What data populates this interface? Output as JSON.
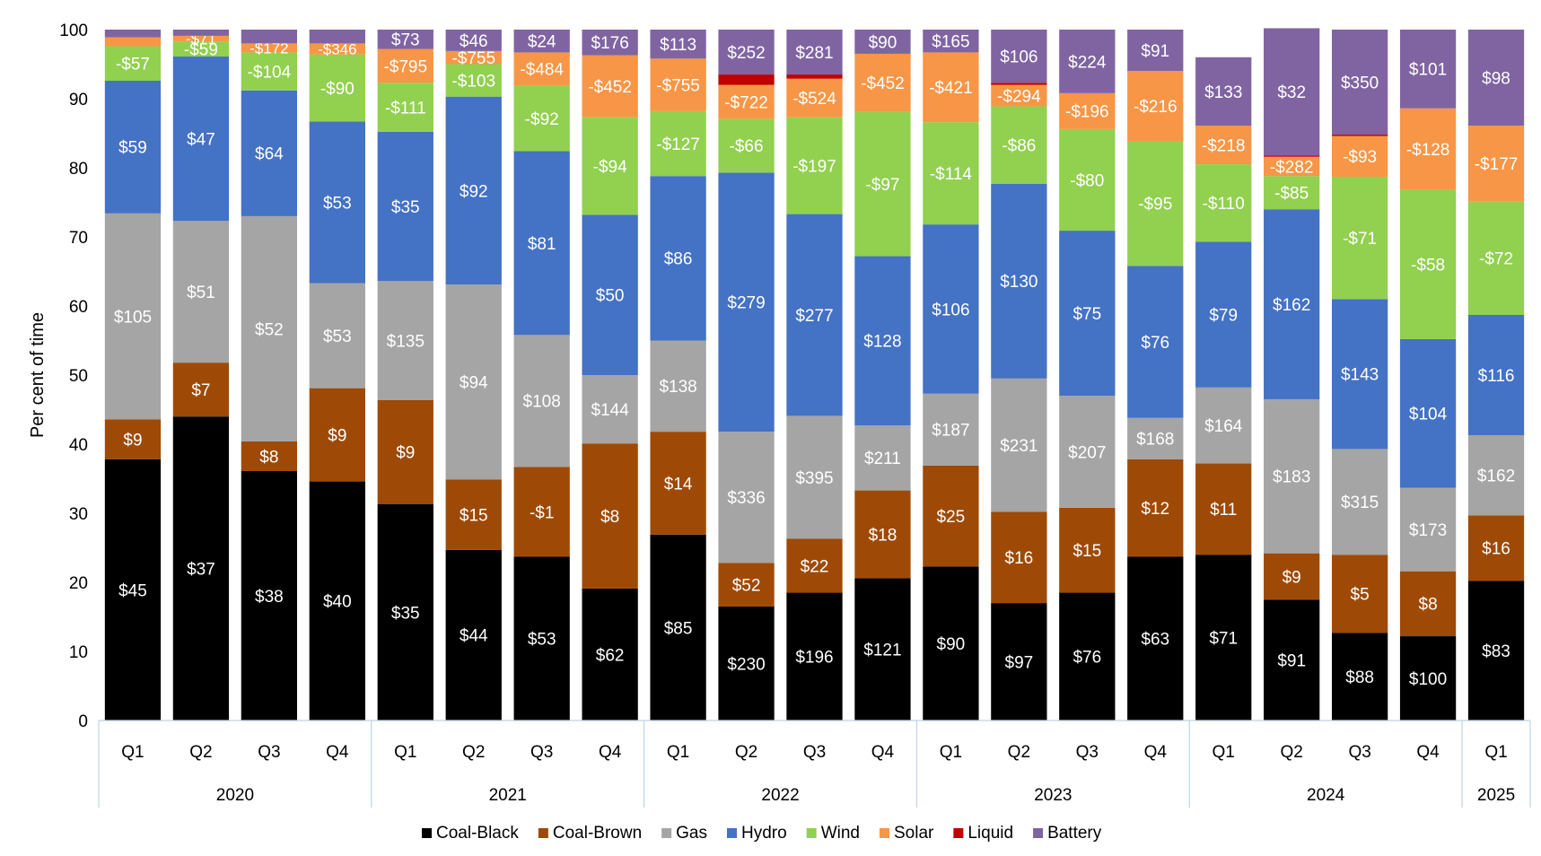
{
  "chart_data": {
    "type": "bar",
    "stacked": true,
    "ylabel": "Per cent of time",
    "ylim": [
      0,
      100
    ],
    "yticks": [
      "0",
      "10",
      "20",
      "30",
      "40",
      "50",
      "60",
      "70",
      "80",
      "90",
      "100"
    ],
    "categories": [
      {
        "quarter": "Q1",
        "year": "2020"
      },
      {
        "quarter": "Q2",
        "year": "2020"
      },
      {
        "quarter": "Q3",
        "year": "2020"
      },
      {
        "quarter": "Q4",
        "year": "2020"
      },
      {
        "quarter": "Q1",
        "year": "2021"
      },
      {
        "quarter": "Q2",
        "year": "2021"
      },
      {
        "quarter": "Q3",
        "year": "2021"
      },
      {
        "quarter": "Q4",
        "year": "2021"
      },
      {
        "quarter": "Q1",
        "year": "2022"
      },
      {
        "quarter": "Q2",
        "year": "2022"
      },
      {
        "quarter": "Q3",
        "year": "2022"
      },
      {
        "quarter": "Q4",
        "year": "2022"
      },
      {
        "quarter": "Q1",
        "year": "2023"
      },
      {
        "quarter": "Q2",
        "year": "2023"
      },
      {
        "quarter": "Q3",
        "year": "2023"
      },
      {
        "quarter": "Q4",
        "year": "2023"
      },
      {
        "quarter": "Q1",
        "year": "2024"
      },
      {
        "quarter": "Q2",
        "year": "2024"
      },
      {
        "quarter": "Q3",
        "year": "2024"
      },
      {
        "quarter": "Q4",
        "year": "2024"
      },
      {
        "quarter": "Q1",
        "year": "2025"
      }
    ],
    "years": [
      "2020",
      "2021",
      "2022",
      "2023",
      "2024",
      "2025"
    ],
    "series": [
      {
        "name": "Coal-Black",
        "color": "#000000",
        "label_color": "#ffffff",
        "values": [
          37.8,
          44.0,
          36.1,
          34.6,
          31.3,
          24.7,
          23.7,
          19.1,
          26.9,
          16.5,
          18.5,
          20.6,
          22.3,
          17.0,
          18.5,
          23.7,
          24.0,
          17.5,
          12.7,
          12.2,
          20.2
        ],
        "labels": [
          "$45",
          "$37",
          "$38",
          "$40",
          "$35",
          "$44",
          "$53",
          "$62",
          "$85",
          "$230",
          "$196",
          "$121",
          "$90",
          "$97",
          "$76",
          "$63",
          "$71",
          "$91",
          "$88",
          "$100",
          "$83"
        ]
      },
      {
        "name": "Coal-Brown",
        "color": "#9e4a06",
        "label_color": "#ffffff",
        "values": [
          5.8,
          7.8,
          4.3,
          13.5,
          15.1,
          10.2,
          13.0,
          21.0,
          14.9,
          6.3,
          7.8,
          12.7,
          14.6,
          13.2,
          12.3,
          14.1,
          13.2,
          6.7,
          11.3,
          9.4,
          9.5
        ],
        "labels": [
          "$9",
          "$7",
          "$8",
          "$9",
          "$9",
          "$15",
          "-$1",
          "$8",
          "$14",
          "$52",
          "$22",
          "$18",
          "$25",
          "$16",
          "$15",
          "$12",
          "$11",
          "$9",
          "$5",
          "$8",
          "$16"
        ]
      },
      {
        "name": "Gas",
        "color": "#a5a5a5",
        "label_color": "#ffffff",
        "values": [
          29.8,
          20.5,
          32.6,
          15.2,
          17.2,
          28.2,
          19.1,
          9.9,
          13.2,
          19.0,
          17.8,
          9.4,
          10.4,
          19.3,
          16.2,
          6.0,
          11.0,
          22.3,
          15.3,
          12.1,
          11.6
        ],
        "labels": [
          "$105",
          "$51",
          "$52",
          "$53",
          "$135",
          "$94",
          "$108",
          "$144",
          "$138",
          "$336",
          "$395",
          "$211",
          "$187",
          "$231",
          "$207",
          "$168",
          "$164",
          "$183",
          "$315",
          "$173",
          "$162"
        ]
      },
      {
        "name": "Hydro",
        "color": "#4472c4",
        "label_color": "#ffffff",
        "values": [
          19.2,
          23.8,
          18.2,
          23.4,
          21.6,
          27.2,
          26.6,
          23.2,
          23.8,
          37.5,
          29.2,
          24.5,
          24.5,
          28.2,
          23.9,
          22.0,
          21.1,
          27.5,
          21.7,
          21.5,
          17.4
        ],
        "labels": [
          "$59",
          "$47",
          "$64",
          "$53",
          "$35",
          "$92",
          "$81",
          "$50",
          "$86",
          "$279",
          "$277",
          "$128",
          "$106",
          "$130",
          "$75",
          "$76",
          "$79",
          "$162",
          "$143",
          "$104",
          "$116"
        ]
      },
      {
        "name": "Wind",
        "color": "#92d050",
        "label_color": "#ffffff",
        "values": [
          5.0,
          2.2,
          5.5,
          9.7,
          7.1,
          4.7,
          9.5,
          14.1,
          9.4,
          7.8,
          14.0,
          20.9,
          14.8,
          11.2,
          14.7,
          18.1,
          11.2,
          4.8,
          17.7,
          21.6,
          16.4
        ],
        "labels": [
          "-$57",
          "-$59",
          "-$104",
          "-$90",
          "-$111",
          "-$103",
          "-$92",
          "-$94",
          "-$127",
          "-$66",
          "-$197",
          "-$97",
          "-$114",
          "-$86",
          "-$80",
          "-$95",
          "-$110",
          "-$85",
          "-$71",
          "-$58",
          "-$72"
        ]
      },
      {
        "name": "Solar",
        "color": "#f79646",
        "label_color": "#ffffff",
        "values": [
          1.3,
          0.8,
          1.3,
          1.6,
          4.9,
          1.9,
          4.8,
          9.0,
          7.6,
          4.9,
          5.6,
          8.4,
          10.1,
          3.1,
          5.2,
          10.1,
          5.6,
          2.8,
          5.9,
          11.8,
          11.0
        ],
        "labels": [
          "",
          "-$71",
          "-$172",
          "-$346",
          "-$795",
          "-$755",
          "-$484",
          "-$452",
          "-$755",
          "-$722",
          "-$524",
          "-$452",
          "-$421",
          "-$294",
          "-$196",
          "-$216",
          "-$218",
          "-$282",
          "-$93",
          "-$128",
          "-$177"
        ]
      },
      {
        "name": "Liquid",
        "color": "#c00000",
        "label_color": "#ffffff",
        "values": [
          0,
          0,
          0,
          0,
          0,
          0,
          0,
          0,
          0,
          1.5,
          0.6,
          0,
          0,
          0.3,
          0,
          0,
          0,
          0.2,
          0.2,
          0,
          0
        ],
        "labels": [
          "",
          "",
          "",
          "",
          "",
          "",
          "",
          "",
          "",
          "",
          "",
          "",
          "",
          "",
          "",
          "",
          "",
          "",
          "",
          "",
          ""
        ]
      },
      {
        "name": "Battery",
        "color": "#8064a2",
        "label_color": "#ffffff",
        "values": [
          1.1,
          0.9,
          2.0,
          2.0,
          2.8,
          3.1,
          3.3,
          3.7,
          4.2,
          6.5,
          6.5,
          3.5,
          3.3,
          7.7,
          9.2,
          6.0,
          9.9,
          18.4,
          15.2,
          11.4,
          13.9
        ],
        "labels": [
          "",
          "",
          "",
          "",
          "$73",
          "$46",
          "$24",
          "$176",
          "$113",
          "$252",
          "$281",
          "$90",
          "$165",
          "$106",
          "$224",
          "$91",
          "$133",
          "$32",
          "$350",
          "$101",
          "$98"
        ]
      }
    ]
  }
}
